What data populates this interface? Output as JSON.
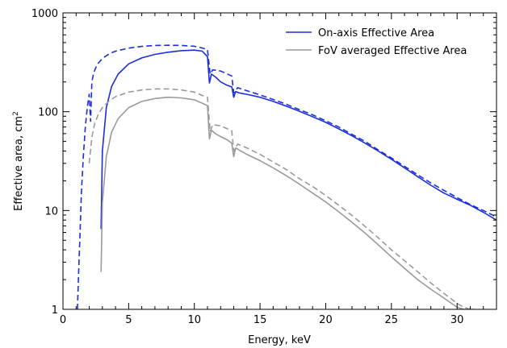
{
  "chart_data": {
    "type": "line",
    "xlabel": "Energy, keV",
    "ylabel_main": "Effective area, cm",
    "ylabel_sup": "2",
    "xlim": [
      0,
      33
    ],
    "ylim": [
      1,
      1000
    ],
    "yscale": "log",
    "grid": false,
    "legend_position": "top-right",
    "x_ticks": [
      0,
      5,
      10,
      15,
      20,
      25,
      30
    ],
    "x_tick_labels": [
      "0",
      "5",
      "10",
      "15",
      "20",
      "25",
      "30"
    ],
    "y_ticks": [
      1,
      10,
      100,
      1000
    ],
    "y_tick_labels": [
      "1",
      "10",
      "100",
      "1000"
    ],
    "series": [
      {
        "name": "On-axis Effective Area",
        "color": "#1a2ee0",
        "dash": false,
        "in_legend": true,
        "x": [
          2.9,
          3.0,
          3.3,
          3.7,
          4.2,
          5.0,
          6.0,
          7.0,
          8.0,
          9.0,
          10.0,
          10.6,
          11.0,
          11.15,
          11.3,
          11.6,
          12.0,
          12.5,
          12.85,
          13.0,
          13.15,
          13.4,
          14,
          15,
          16,
          17,
          18,
          19,
          20,
          21,
          22,
          23,
          24,
          25,
          26,
          27,
          28,
          29,
          30,
          31,
          32,
          33
        ],
        "y": [
          6.5,
          40,
          110,
          180,
          240,
          305,
          350,
          380,
          400,
          415,
          420,
          410,
          360,
          195,
          240,
          225,
          200,
          185,
          178,
          140,
          160,
          155,
          150,
          140,
          127,
          114,
          101,
          89,
          78,
          67,
          57,
          48,
          40,
          33,
          27,
          22,
          18,
          15,
          13,
          11.3,
          9.6,
          8.0
        ]
      },
      {
        "name": "On-axis dashed",
        "color": "#1a2ee0",
        "dash": true,
        "in_legend": false,
        "x": [
          1.1,
          1.2,
          1.3,
          1.4,
          1.55,
          1.7,
          1.85,
          2.0,
          2.1,
          2.2,
          2.35,
          2.6,
          3.0,
          3.5,
          4.0,
          5.0,
          6.0,
          7.0,
          8.0,
          9.0,
          10.0,
          10.5,
          11.0,
          11.2,
          11.4,
          12.0,
          12.85,
          13.0,
          13.3,
          14,
          15,
          16,
          17,
          18,
          19,
          20,
          21,
          22,
          23,
          24,
          25,
          26,
          27,
          28,
          29,
          30,
          31,
          32,
          33
        ],
        "y": [
          1,
          2.5,
          6,
          15,
          35,
          70,
          110,
          150,
          80,
          200,
          250,
          300,
          345,
          385,
          410,
          440,
          458,
          468,
          470,
          468,
          460,
          445,
          425,
          240,
          265,
          258,
          230,
          155,
          175,
          163,
          148,
          133,
          119,
          105,
          93,
          81,
          70,
          59,
          50,
          41,
          34,
          28,
          23,
          19,
          16,
          13.5,
          11.5,
          10.0,
          8.6
        ]
      },
      {
        "name": "FoV averaged Effective Area",
        "color": "#9a9a9a",
        "dash": false,
        "in_legend": true,
        "x": [
          2.9,
          3.0,
          3.3,
          3.7,
          4.2,
          5.0,
          6.0,
          7.0,
          8.0,
          9.0,
          10.0,
          10.6,
          11.0,
          11.15,
          11.3,
          11.6,
          12.0,
          12.5,
          12.85,
          13.0,
          13.15,
          13.4,
          14,
          15,
          16,
          17,
          18,
          19,
          20,
          21,
          22,
          23,
          24,
          25,
          26,
          27,
          28,
          29,
          30,
          30.5,
          31,
          31.3
        ],
        "y": [
          2.4,
          12,
          35,
          62,
          85,
          110,
          127,
          136,
          140,
          138,
          132,
          122,
          115,
          53,
          65,
          60,
          56,
          52,
          48,
          35,
          43,
          41,
          37,
          32,
          27,
          22.5,
          18.5,
          15,
          12.2,
          9.7,
          7.6,
          5.9,
          4.5,
          3.4,
          2.6,
          2.0,
          1.6,
          1.3,
          1.05,
          1.0,
          1.0,
          1.0
        ]
      },
      {
        "name": "FoV averaged dashed",
        "color": "#9a9a9a",
        "dash": true,
        "in_legend": false,
        "x": [
          2.0,
          2.2,
          2.4,
          2.7,
          3.0,
          3.5,
          4.0,
          5.0,
          6.0,
          7.0,
          8.0,
          9.0,
          10.0,
          10.6,
          11.0,
          11.2,
          11.4,
          12.0,
          12.85,
          13.0,
          13.3,
          14,
          15,
          16,
          17,
          18,
          19,
          20,
          21,
          22,
          23,
          24,
          25,
          26,
          27,
          28,
          29,
          30,
          30.5,
          31
        ],
        "y": [
          30,
          55,
          75,
          95,
          110,
          128,
          142,
          158,
          166,
          170,
          170,
          166,
          158,
          146,
          140,
          63,
          74,
          72,
          64,
          40,
          47,
          43,
          37,
          31,
          26,
          21,
          17.5,
          14.2,
          11.3,
          8.9,
          6.9,
          5.3,
          4.0,
          3.1,
          2.4,
          1.85,
          1.45,
          1.15,
          1.05,
          1.0
        ]
      }
    ]
  }
}
